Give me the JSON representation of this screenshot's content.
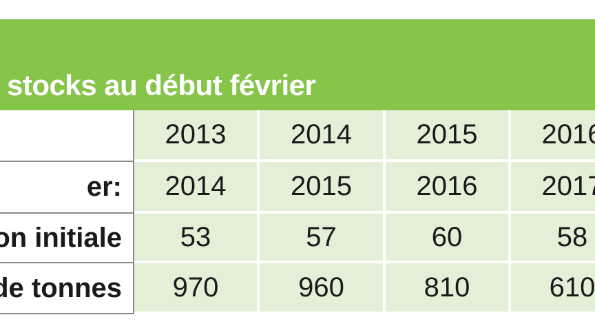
{
  "title": "stocks au début février",
  "table": {
    "rows": [
      [
        "",
        "2013",
        "2014",
        "2015",
        "2016"
      ],
      [
        "er:",
        "2014",
        "2015",
        "2016",
        "2017"
      ],
      [
        "on initiale",
        "53",
        "57",
        "60",
        "58"
      ],
      [
        "de tonnes",
        "970",
        "960",
        "810",
        "610"
      ]
    ]
  }
}
